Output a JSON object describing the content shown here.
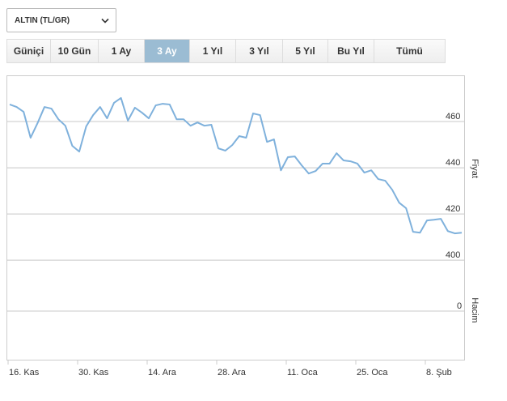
{
  "ui": {
    "instrument": "ALTIN (TL/GR)",
    "tabs": [
      "Güniçi",
      "10 Gün",
      "1 Ay",
      "3 Ay",
      "1 Yıl",
      "3 Yıl",
      "5 Yıl",
      "Bu Yıl",
      "Tümü"
    ],
    "active_tab": 3
  },
  "chart_data": {
    "type": "line",
    "y_label": "Fiyat",
    "y2_label": "Hacim",
    "color": "#7fb1dc",
    "grid": true,
    "categories": [
      "16. Kas",
      null,
      null,
      null,
      null,
      null,
      null,
      null,
      null,
      null,
      "30. Kas",
      null,
      null,
      null,
      null,
      null,
      null,
      null,
      null,
      null,
      "14. Ara",
      null,
      null,
      null,
      null,
      null,
      null,
      null,
      null,
      null,
      "28. Ara",
      null,
      null,
      null,
      null,
      null,
      null,
      null,
      null,
      null,
      "11. Oca",
      null,
      null,
      null,
      null,
      null,
      null,
      null,
      null,
      null,
      "25. Oca",
      null,
      null,
      null,
      null,
      null,
      null,
      null,
      null,
      null,
      "8. Şub",
      null,
      null,
      null,
      null,
      null
    ],
    "values": [
      467.4,
      466.3,
      464.2,
      453,
      459.3,
      466.3,
      465.6,
      461,
      458.2,
      449.5,
      447,
      457.9,
      462.8,
      466.3,
      461.4,
      468.1,
      470.2,
      460.4,
      466,
      463.9,
      461.4,
      467,
      467.7,
      467.4,
      461,
      461,
      458.2,
      459.6,
      458.2,
      458.6,
      448.4,
      447.4,
      449.8,
      453.7,
      453,
      463.5,
      462.8,
      451.2,
      452.3,
      438.9,
      444.6,
      444.9,
      441,
      437.5,
      438.6,
      441.8,
      441.8,
      446.3,
      443.2,
      442.8,
      441.8,
      437.9,
      438.9,
      435.1,
      434.4,
      430.5,
      424.9,
      422.5,
      412.3,
      411.9,
      417.2,
      417.5,
      417.9,
      412.6,
      411.6,
      411.9
    ],
    "ylim": [
      392,
      480
    ],
    "yticks": [
      400,
      420,
      440,
      460
    ],
    "y2lim": [
      -0.6,
      0.4
    ],
    "y2ticks": [
      0
    ]
  }
}
